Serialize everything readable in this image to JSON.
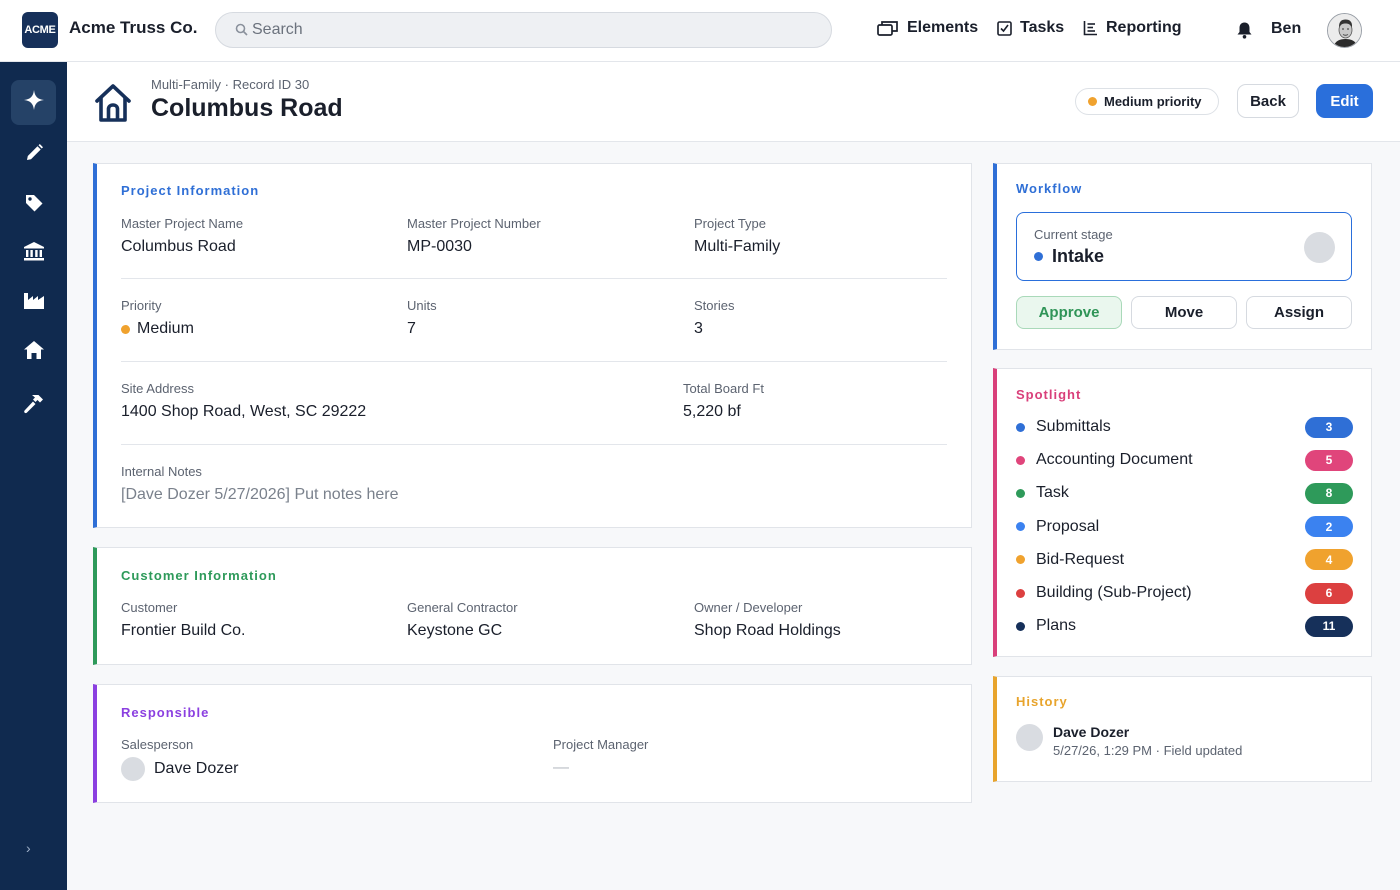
{
  "app": {
    "logo_text": "ACME",
    "company": "Acme Truss Co."
  },
  "search": {
    "placeholder": "Search",
    "value": ""
  },
  "nav": [
    {
      "label": "Elements",
      "icon": "window-stack-icon"
    },
    {
      "label": "Tasks",
      "icon": "checkbox-icon"
    },
    {
      "label": "Reporting",
      "icon": "report-icon"
    }
  ],
  "user": {
    "name": "Ben"
  },
  "sidebar": {
    "items": [
      {
        "icon": "sparkle-icon",
        "active": true
      },
      {
        "icon": "pencil-icon",
        "active": false
      },
      {
        "icon": "tag-icon",
        "active": false
      },
      {
        "icon": "bank-icon",
        "active": false
      },
      {
        "icon": "factory-icon",
        "active": false
      },
      {
        "icon": "home-icon",
        "active": false
      },
      {
        "icon": "hammer-icon",
        "active": false
      }
    ],
    "collapse_glyph": "›"
  },
  "header": {
    "breadcrumb": "Multi-Family · Record ID 30",
    "title": "Columbus Road",
    "priority_badge": "Medium priority",
    "back_label": "Back",
    "edit_label": "Edit"
  },
  "project_info": {
    "title": "Project Information",
    "master_project_name": {
      "label": "Master Project Name",
      "value": "Columbus Road"
    },
    "master_project_number": {
      "label": "Master Project Number",
      "value": "MP-0030"
    },
    "project_type": {
      "label": "Project Type",
      "value": "Multi-Family"
    },
    "priority": {
      "label": "Priority",
      "value": "Medium"
    },
    "units": {
      "label": "Units",
      "value": "7"
    },
    "stories": {
      "label": "Stories",
      "value": "3"
    },
    "site_address": {
      "label": "Site Address",
      "value": "1400 Shop Road, West, SC 29222"
    },
    "total_board_ft": {
      "label": "Total Board Ft",
      "value": "5,220 bf"
    },
    "internal_notes": {
      "label": "Internal Notes",
      "value": "[Dave Dozer 5/27/2026] Put notes here"
    }
  },
  "customer_info": {
    "title": "Customer Information",
    "customer": {
      "label": "Customer",
      "value": "Frontier Build Co."
    },
    "general_contractor": {
      "label": "General Contractor",
      "value": "Keystone GC"
    },
    "owner_developer": {
      "label": "Owner / Developer",
      "value": "Shop Road Holdings"
    }
  },
  "responsible": {
    "title": "Responsible",
    "salesperson": {
      "label": "Salesperson",
      "value": "Dave Dozer"
    },
    "project_manager": {
      "label": "Project Manager",
      "value": "—"
    }
  },
  "workflow": {
    "title": "Workflow",
    "stage_label": "Current stage",
    "stage_value": "Intake",
    "approve_label": "Approve",
    "move_label": "Move",
    "assign_label": "Assign"
  },
  "spotlight": {
    "title": "Spotlight",
    "items": [
      {
        "label": "Submittals",
        "count": "3",
        "color": "#2f6fd6"
      },
      {
        "label": "Accounting Document",
        "count": "5",
        "color": "#e0457b"
      },
      {
        "label": "Task",
        "count": "8",
        "color": "#2e9a5a"
      },
      {
        "label": "Proposal",
        "count": "2",
        "color": "#3b82f0"
      },
      {
        "label": "Bid-Request",
        "count": "4",
        "color": "#f0a22e"
      },
      {
        "label": "Building (Sub-Project)",
        "count": "6",
        "color": "#dc4040"
      },
      {
        "label": "Plans",
        "count": "11",
        "color": "#16305a"
      }
    ]
  },
  "history": {
    "title": "History",
    "entries": [
      {
        "name": "Dave Dozer",
        "meta": "5/27/26, 1:29 PM · Field updated"
      }
    ]
  },
  "colors": {
    "brand_navy": "#102a4f",
    "accent_blue": "#2a6fdb",
    "project_accent": "#2f6fd6",
    "customer_accent": "#2e9a5a",
    "responsible_accent": "#8b3fe0",
    "spotlight_accent": "#d93f7a",
    "history_accent": "#e8a42c",
    "priority_medium": "#f0a22e"
  }
}
